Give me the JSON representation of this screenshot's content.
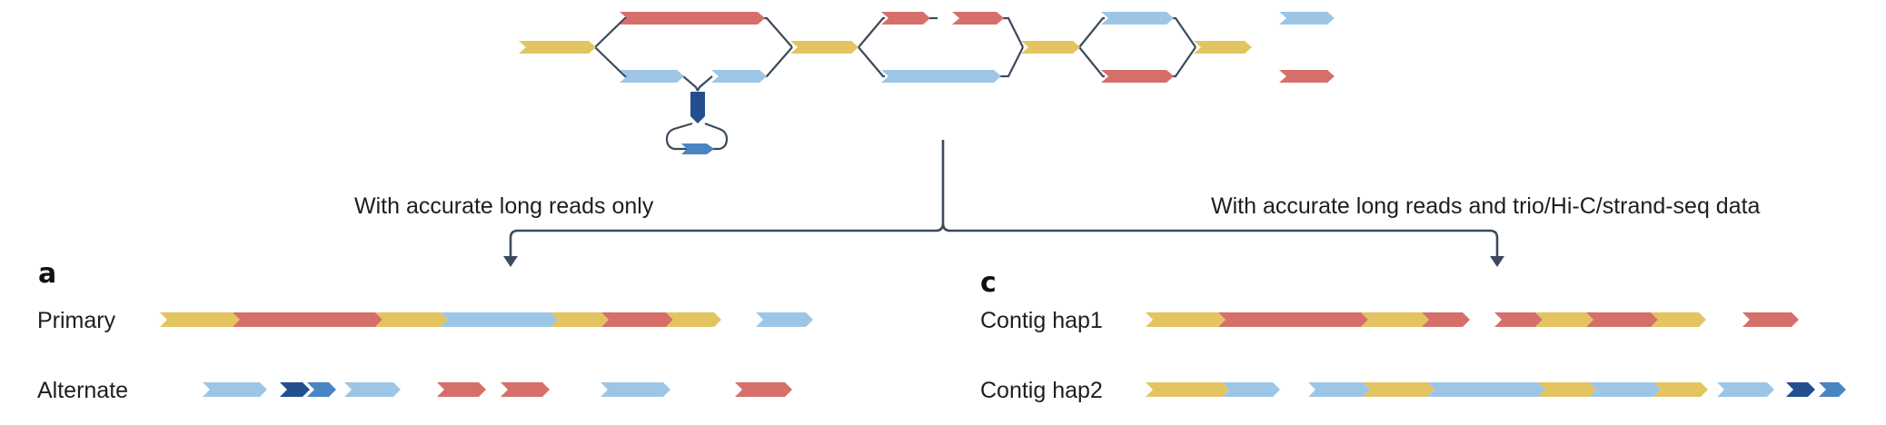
{
  "colors": {
    "yellow": "#e3c461",
    "red": "#d66f6a",
    "lightblue": "#9dc6e6",
    "darkblue": "#244f8f",
    "midblue": "#4a85c3",
    "line": "#3d4a5c",
    "text": "#1e1e1e"
  },
  "graph": {
    "description_segments": "assembly graph with haplotype bubbles"
  },
  "branch_left": {
    "label": "With accurate long reads only"
  },
  "branch_right": {
    "label": "With accurate long reads and trio/Hi-C/strand-seq data"
  },
  "panel_a": {
    "letter": "a",
    "rows": [
      {
        "label": "Primary"
      },
      {
        "label": "Alternate"
      }
    ]
  },
  "panel_c": {
    "letter": "c",
    "rows": [
      {
        "label": "Contig hap1"
      },
      {
        "label": "Contig hap2"
      }
    ]
  }
}
